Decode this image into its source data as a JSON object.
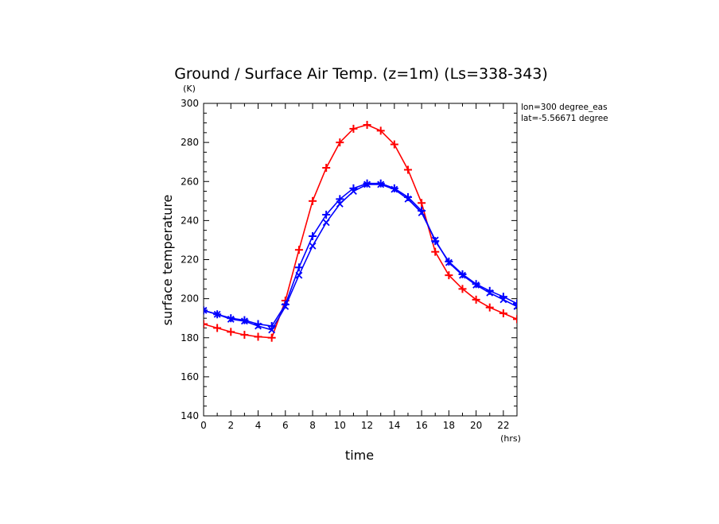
{
  "chart_data": {
    "type": "line",
    "title": "Ground / Surface Air Temp. (z=1m) (Ls=338-343)",
    "xlabel": "time",
    "ylabel": "surface temperature",
    "x_unit": "(hrs)",
    "y_unit": "(K)",
    "xlim": [
      0,
      23
    ],
    "ylim": [
      140,
      300
    ],
    "x_ticks": [
      0,
      2,
      4,
      6,
      8,
      10,
      12,
      14,
      16,
      18,
      20,
      22
    ],
    "y_ticks": [
      140,
      160,
      180,
      200,
      220,
      240,
      260,
      280,
      300
    ],
    "annotations": [
      "lon=300 degree_eas",
      "lat=-5.56671 degree"
    ],
    "grid": false,
    "x": [
      0,
      1,
      2,
      3,
      4,
      5,
      6,
      7,
      8,
      9,
      10,
      11,
      12,
      13,
      14,
      15,
      16,
      17,
      18,
      19,
      20,
      21,
      22,
      23
    ],
    "series": [
      {
        "marker": "plus",
        "color": "#ff0000",
        "values": [
          187,
          185,
          183,
          181.5,
          180.5,
          180,
          199,
          225,
          250,
          267,
          280,
          287,
          289,
          286,
          279,
          266,
          249,
          224,
          212,
          205,
          199.5,
          195.5,
          192.5,
          189.5
        ]
      },
      {
        "marker": "x",
        "color": "#0000ff",
        "values": [
          194,
          192,
          189.5,
          188.5,
          186,
          184,
          196,
          212,
          227,
          239,
          248.5,
          255,
          258.5,
          258.5,
          256,
          251,
          244,
          230,
          218.5,
          212,
          207,
          203,
          199.5,
          196
        ]
      },
      {
        "marker": "plus",
        "color": "#0000ff",
        "values": [
          194,
          192,
          190,
          189,
          187,
          186,
          197,
          216,
          232,
          243,
          251,
          256.5,
          259,
          259,
          256.5,
          252,
          245,
          229.5,
          219,
          212.5,
          207.5,
          204,
          201,
          197.5
        ]
      }
    ]
  }
}
